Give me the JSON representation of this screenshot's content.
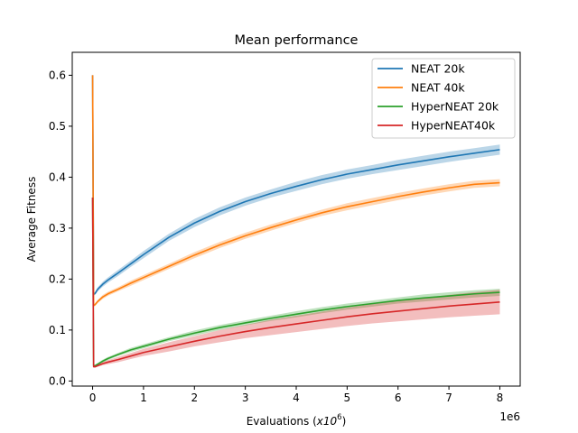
{
  "chart_data": {
    "type": "line",
    "title": "Mean performance",
    "xlabel_prefix": "Evaluations (",
    "xlabel_var": "x10",
    "xlabel_exp": "6",
    "xlabel_suffix": ")",
    "ylabel": "Average Fitness",
    "x_offset_text": "1e6",
    "xlim": [
      -0.4,
      8.4
    ],
    "ylim": [
      -0.01,
      0.645
    ],
    "x_ticks": [
      0,
      1,
      2,
      3,
      4,
      5,
      6,
      7,
      8
    ],
    "y_ticks": [
      0.0,
      0.1,
      0.2,
      0.3,
      0.4,
      0.5,
      0.6
    ],
    "x_tick_labels": [
      "0",
      "1",
      "2",
      "3",
      "4",
      "5",
      "6",
      "7",
      "8"
    ],
    "y_tick_labels": [
      "0.0",
      "0.1",
      "0.2",
      "0.3",
      "0.4",
      "0.5",
      "0.6"
    ],
    "grid": false,
    "legend_position": "top-right",
    "series": [
      {
        "name": "NEAT 20k",
        "color": "#1f77b4",
        "x": [
          0,
          0.02,
          0.05,
          0.1,
          0.2,
          0.3,
          0.5,
          0.75,
          1.0,
          1.5,
          2.0,
          2.5,
          3.0,
          3.5,
          4.0,
          4.5,
          5.0,
          5.5,
          6.0,
          6.5,
          7.0,
          7.5,
          8.0
        ],
        "y": [
          0.6,
          0.17,
          0.172,
          0.18,
          0.19,
          0.198,
          0.212,
          0.23,
          0.248,
          0.282,
          0.31,
          0.333,
          0.352,
          0.368,
          0.382,
          0.395,
          0.406,
          0.415,
          0.424,
          0.432,
          0.44,
          0.447,
          0.454
        ],
        "band": [
          0.002,
          0.003,
          0.003,
          0.004,
          0.005,
          0.005,
          0.006,
          0.006,
          0.007,
          0.007,
          0.008,
          0.008,
          0.008,
          0.008,
          0.009,
          0.009,
          0.009,
          0.009,
          0.01,
          0.01,
          0.01,
          0.01,
          0.01
        ]
      },
      {
        "name": "NEAT 40k",
        "color": "#ff7f0e",
        "x": [
          0,
          0.02,
          0.05,
          0.1,
          0.2,
          0.3,
          0.5,
          0.75,
          1.0,
          1.5,
          2.0,
          2.5,
          3.0,
          3.5,
          4.0,
          4.5,
          5.0,
          5.5,
          6.0,
          6.5,
          7.0,
          7.5,
          8.0
        ],
        "y": [
          0.6,
          0.148,
          0.15,
          0.156,
          0.165,
          0.171,
          0.18,
          0.192,
          0.203,
          0.225,
          0.247,
          0.267,
          0.285,
          0.301,
          0.316,
          0.33,
          0.342,
          0.352,
          0.362,
          0.371,
          0.379,
          0.386,
          0.389
        ],
        "band": [
          0.002,
          0.002,
          0.003,
          0.003,
          0.004,
          0.004,
          0.004,
          0.005,
          0.005,
          0.005,
          0.006,
          0.006,
          0.006,
          0.006,
          0.006,
          0.006,
          0.007,
          0.007,
          0.007,
          0.007,
          0.007,
          0.007,
          0.007
        ]
      },
      {
        "name": "HyperNEAT 20k",
        "color": "#2ca02c",
        "x": [
          0,
          0.02,
          0.05,
          0.1,
          0.2,
          0.3,
          0.5,
          0.75,
          1.0,
          1.5,
          2.0,
          2.5,
          3.0,
          3.5,
          4.0,
          4.5,
          5.0,
          5.5,
          6.0,
          6.5,
          7.0,
          7.5,
          8.0
        ],
        "y": [
          0.36,
          0.03,
          0.03,
          0.033,
          0.039,
          0.044,
          0.052,
          0.061,
          0.068,
          0.082,
          0.094,
          0.105,
          0.114,
          0.123,
          0.131,
          0.139,
          0.146,
          0.152,
          0.158,
          0.163,
          0.167,
          0.171,
          0.174
        ],
        "band": [
          0.001,
          0.002,
          0.002,
          0.002,
          0.003,
          0.003,
          0.003,
          0.004,
          0.004,
          0.004,
          0.005,
          0.005,
          0.005,
          0.005,
          0.006,
          0.006,
          0.006,
          0.006,
          0.006,
          0.007,
          0.007,
          0.007,
          0.007
        ]
      },
      {
        "name": "HyperNEAT40k",
        "color": "#d62728",
        "x": [
          0,
          0.02,
          0.05,
          0.1,
          0.2,
          0.3,
          0.5,
          0.75,
          1.0,
          1.5,
          2.0,
          2.5,
          3.0,
          3.5,
          4.0,
          4.5,
          5.0,
          5.5,
          6.0,
          6.5,
          7.0,
          7.5,
          8.0
        ],
        "y": [
          0.36,
          0.028,
          0.028,
          0.03,
          0.034,
          0.037,
          0.042,
          0.049,
          0.056,
          0.067,
          0.078,
          0.088,
          0.097,
          0.105,
          0.112,
          0.119,
          0.126,
          0.132,
          0.137,
          0.142,
          0.147,
          0.151,
          0.155
        ],
        "band": [
          0.001,
          0.001,
          0.002,
          0.002,
          0.003,
          0.004,
          0.005,
          0.006,
          0.007,
          0.009,
          0.01,
          0.012,
          0.013,
          0.015,
          0.016,
          0.017,
          0.018,
          0.019,
          0.02,
          0.021,
          0.022,
          0.023,
          0.024
        ]
      }
    ]
  }
}
